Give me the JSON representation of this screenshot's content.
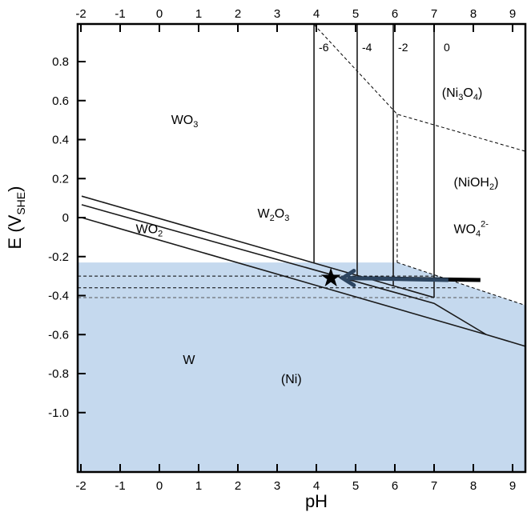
{
  "chart_data": {
    "type": "pourbaix",
    "xlabel": "pH",
    "ylabel": "E (V",
    "ylabel_sub": "SHE",
    "ylabel_close": ")",
    "xlim": [
      -2.08,
      9.33
    ],
    "ylim": [
      -1.3,
      0.99
    ],
    "x_ticks": [
      "-2",
      "-1",
      "0",
      "1",
      "2",
      "3",
      "4",
      "5",
      "6",
      "7",
      "8",
      "9"
    ],
    "y_ticks": [
      {
        "v": 0.8,
        "label": "0.8"
      },
      {
        "v": 0.6,
        "label": "0.6"
      },
      {
        "v": 0.4,
        "label": "0.4"
      },
      {
        "v": 0.2,
        "label": "0.2"
      },
      {
        "v": 0,
        "label": "0"
      },
      {
        "v": -0.2,
        "label": "-0.2"
      },
      {
        "v": -0.4,
        "label": "-0.4"
      },
      {
        "v": -0.6,
        "label": "-0.6"
      },
      {
        "v": -0.8,
        "label": "-0.8"
      },
      {
        "v": -1.0,
        "label": "-1.0"
      }
    ],
    "shaded_color": "#c5d9ee",
    "shaded_region": [
      [
        -2.08,
        -0.23
      ],
      [
        6.06,
        -0.23
      ],
      [
        9.33,
        -0.45
      ],
      [
        9.33,
        -1.3
      ],
      [
        -2.08,
        -1.3
      ]
    ],
    "solid_lines": [
      [
        [
          -1.98,
          0.11
        ],
        [
          7.0,
          -0.41
        ]
      ],
      [
        [
          -1.98,
          0.066
        ],
        [
          7.0,
          -0.44
        ],
        [
          8.33,
          -0.6
        ]
      ],
      [
        [
          -1.98,
          0.0
        ],
        [
          8.33,
          -0.6
        ],
        [
          9.33,
          -0.66
        ]
      ]
    ],
    "iso_lines": [
      {
        "label": "-6",
        "ph": 3.94,
        "e_bottom": -0.23
      },
      {
        "label": "-4",
        "ph": 5.04,
        "e_bottom": -0.3
      },
      {
        "label": "-2",
        "ph": 5.96,
        "e_bottom": -0.35
      },
      {
        "label": "0",
        "ph": 7.0,
        "e_bottom": -0.41
      }
    ],
    "dashed_lines": [
      [
        [
          3.94,
          0.99
        ],
        [
          6.06,
          0.53
        ],
        [
          9.33,
          0.34
        ]
      ],
      [
        [
          6.06,
          0.53
        ],
        [
          6.06,
          -0.23
        ]
      ],
      [
        [
          6.06,
          -0.23
        ],
        [
          9.33,
          -0.45
        ]
      ],
      [
        [
          -2.08,
          -0.3
        ],
        [
          7.1,
          -0.3
        ]
      ],
      [
        [
          -2.08,
          -0.36
        ],
        [
          7.6,
          -0.36
        ]
      ],
      [
        [
          -2.08,
          -0.41
        ],
        [
          8.6,
          -0.41
        ]
      ]
    ],
    "arrow": {
      "from": [
        8.18,
        -0.32
      ],
      "to": [
        4.67,
        -0.31
      ]
    },
    "star": [
      4.37,
      -0.31
    ],
    "regions": [
      {
        "label": "WO",
        "sub": "3",
        "sup": "",
        "ph": 0.3,
        "e": 0.48
      },
      {
        "label": "W",
        "sub": "2",
        "label2": "O",
        "sub2": "3",
        "ph": 2.5,
        "e": 0.0
      },
      {
        "label": "WO",
        "sub": "2",
        "sup": "",
        "ph": -0.6,
        "e": -0.08
      },
      {
        "label": "WO",
        "sub": "4",
        "sup": "2-",
        "ph": 7.5,
        "e": -0.08
      },
      {
        "label": "(NiOH",
        "sub": "2",
        "tail": ")",
        "ph": 7.5,
        "e": 0.16
      },
      {
        "label": "(Ni",
        "sub": "3",
        "label2": "O",
        "sub2": "4",
        "tail": ")",
        "ph": 7.2,
        "e": 0.62
      },
      {
        "label": "W",
        "ph": 0.6,
        "e": -0.75
      },
      {
        "label": "(Ni)",
        "ph": 3.1,
        "e": -0.85
      }
    ]
  }
}
